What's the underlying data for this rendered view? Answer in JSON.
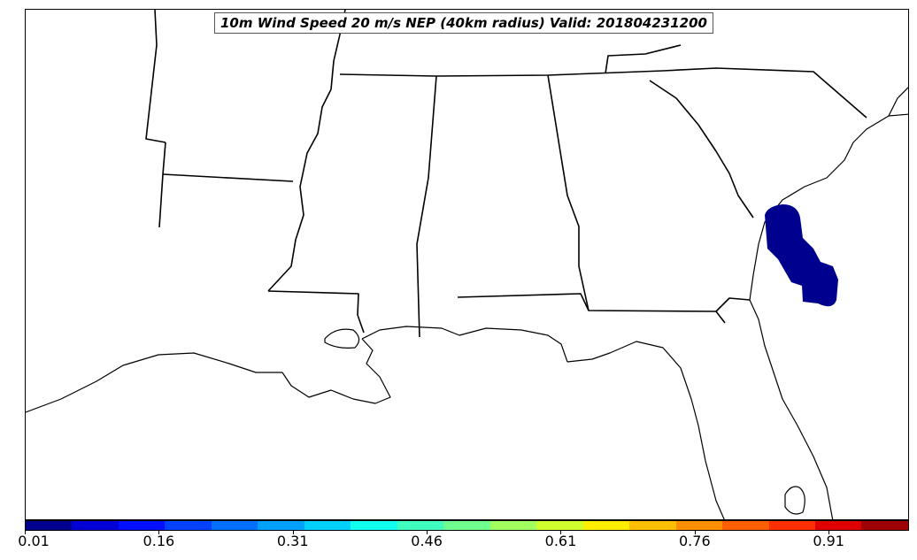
{
  "title": "10m Wind Speed 20 m/s NEP (40km radius) Valid: 201804231200",
  "map": {
    "region": "southeastern-united-states",
    "probability_area_color": "#00008f",
    "line_color": "#000000"
  },
  "colorbar": {
    "min": 0.01,
    "max": 1.0,
    "colors": [
      "#00008f",
      "#0000d6",
      "#0010ff",
      "#0040ff",
      "#0070ff",
      "#00a0ff",
      "#00d0ff",
      "#10ffee",
      "#40ffbe",
      "#70ff8e",
      "#a0ff5e",
      "#d0ff2e",
      "#ffee00",
      "#ffbf00",
      "#ff8f00",
      "#ff5f00",
      "#ff2f00",
      "#df0000",
      "#9f0000"
    ],
    "ticks": [
      "0.01",
      "0.16",
      "0.31",
      "0.46",
      "0.61",
      "0.76",
      "0.91"
    ]
  }
}
